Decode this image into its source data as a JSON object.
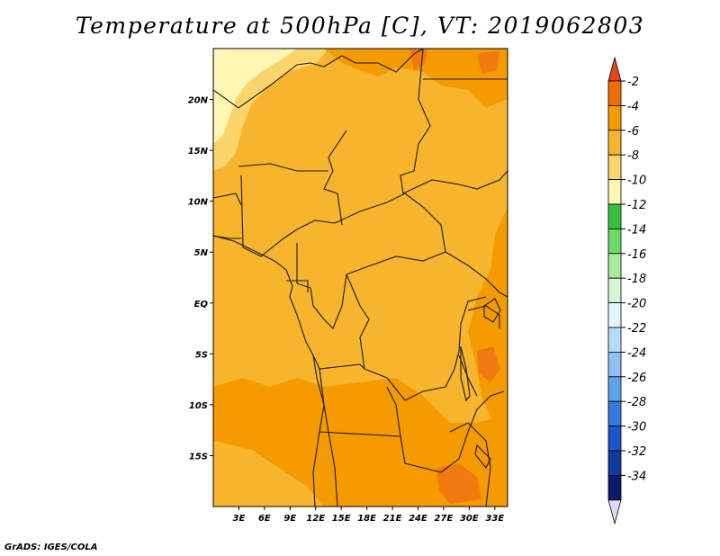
{
  "title": "Temperature at 500hPa [C], VT: 2019062803",
  "credit": "GrADS: IGES/COLA",
  "lat_labels": [
    {
      "value": 20,
      "label": "20N"
    },
    {
      "value": 15,
      "label": "15N"
    },
    {
      "value": 10,
      "label": "10N"
    },
    {
      "value": 5,
      "label": "5N"
    },
    {
      "value": 0,
      "label": "EQ"
    },
    {
      "value": -5,
      "label": "5S"
    },
    {
      "value": -10,
      "label": "10S"
    },
    {
      "value": -15,
      "label": "15S"
    }
  ],
  "lon_labels": [
    {
      "value": 3,
      "label": "3E"
    },
    {
      "value": 6,
      "label": "6E"
    },
    {
      "value": 9,
      "label": "9E"
    },
    {
      "value": 12,
      "label": "12E"
    },
    {
      "value": 15,
      "label": "15E"
    },
    {
      "value": 18,
      "label": "18E"
    },
    {
      "value": 21,
      "label": "21E"
    },
    {
      "value": 24,
      "label": "24E"
    },
    {
      "value": 27,
      "label": "27E"
    },
    {
      "value": 30,
      "label": "30E"
    },
    {
      "value": 33,
      "label": "33E"
    }
  ],
  "map_extent": {
    "lon_min": 0,
    "lon_max": 34.5,
    "lat_min": -20,
    "lat_max": 25
  },
  "colorbar": {
    "top_color": "#e8461e",
    "bottom_color": "#dcdcf5",
    "levels": [
      {
        "label": "-2",
        "color": "#f06e00"
      },
      {
        "label": "-4",
        "color": "#f59b00"
      },
      {
        "label": "-6",
        "color": "#f7b52d"
      },
      {
        "label": "-8",
        "color": "#fbd56b"
      },
      {
        "label": "-10",
        "color": "#fff5b5"
      },
      {
        "label": "-12",
        "color": "#36c03c"
      },
      {
        "label": "-14",
        "color": "#6ed96a"
      },
      {
        "label": "-16",
        "color": "#a6ec9e"
      },
      {
        "label": "-18",
        "color": "#d5f7d3"
      },
      {
        "label": "-20",
        "color": "#e3f5fb"
      },
      {
        "label": "-22",
        "color": "#b6dcf7"
      },
      {
        "label": "-24",
        "color": "#8ec1f2"
      },
      {
        "label": "-26",
        "color": "#5ea3ea"
      },
      {
        "label": "-28",
        "color": "#3779dd"
      },
      {
        "label": "-30",
        "color": "#1f55c8"
      },
      {
        "label": "-32",
        "color": "#123a9e"
      },
      {
        "label": "-34",
        "color": "#0a1a6e"
      }
    ]
  },
  "field_colors": {
    "base": "#f7b52d",
    "warm": "#f59b00",
    "warmer": "#f07a10",
    "cool": "#fbd56b",
    "coolest": "#fff5b5",
    "borders": "#1a1a1a"
  }
}
